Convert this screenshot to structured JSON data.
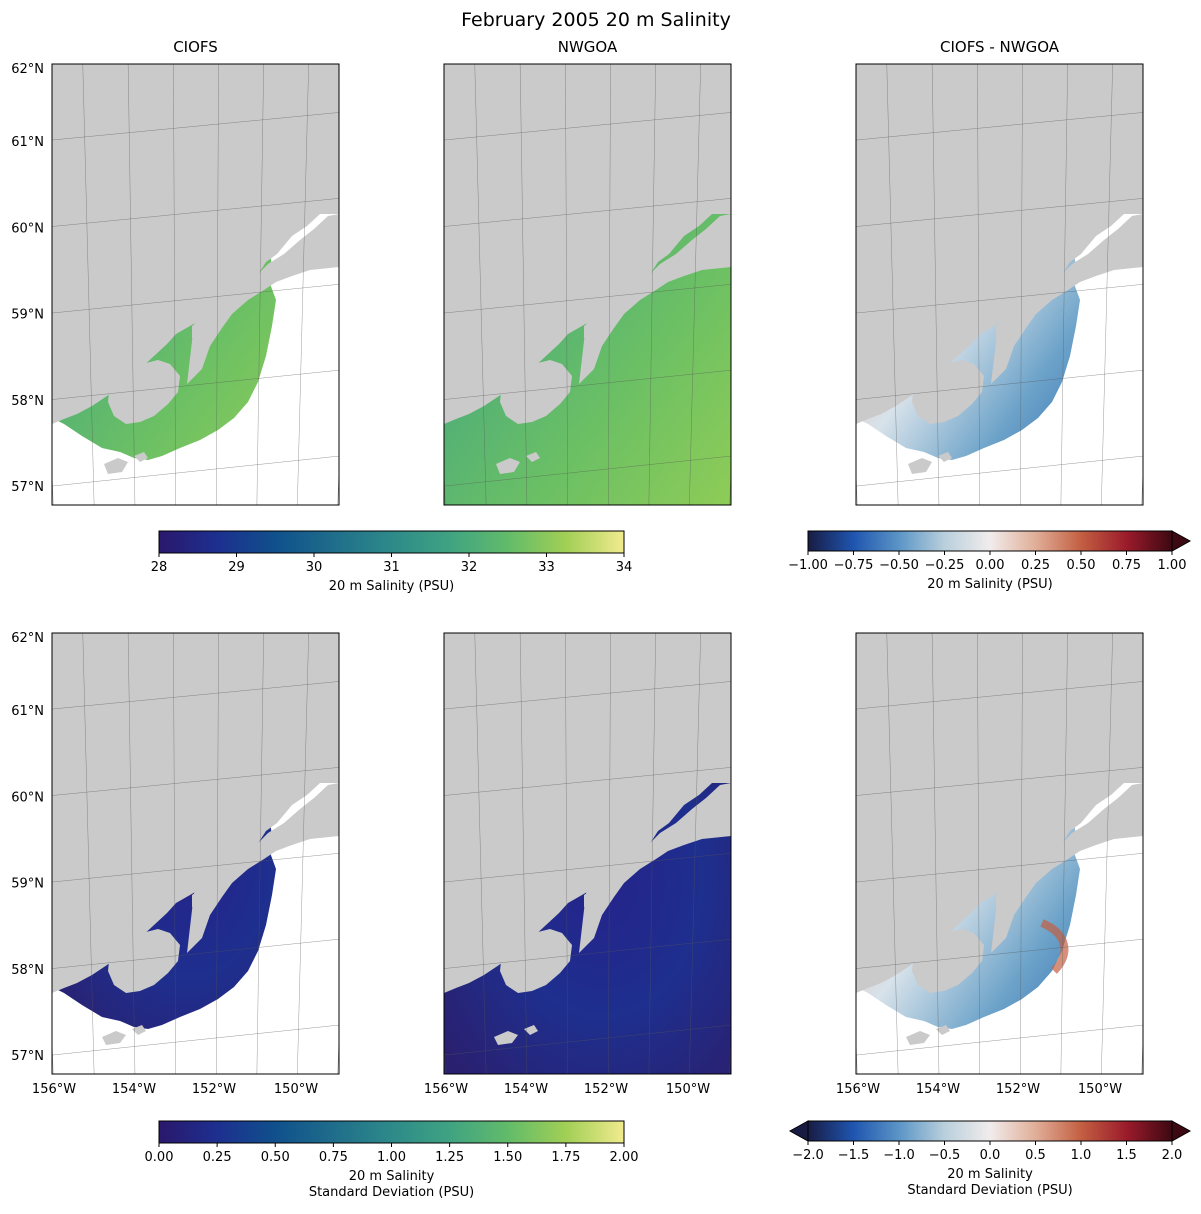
{
  "title": "February 2005 20 m Salinity",
  "chart_data": [
    {
      "type": "heatmap",
      "title": "CIOFS",
      "metric": "mean",
      "colormap": "haline",
      "vmin": 28,
      "vmax": 34,
      "field_range": [
        31.0,
        33.0
      ]
    },
    {
      "type": "heatmap",
      "title": "NWGOA",
      "metric": "mean",
      "colormap": "haline",
      "vmin": 28,
      "vmax": 34,
      "field_range": [
        31.0,
        33.0
      ]
    },
    {
      "type": "heatmap",
      "title": "CIOFS - NWGOA",
      "metric": "mean difference",
      "colormap": "balance",
      "vmin": -1.0,
      "vmax": 1.0
    },
    {
      "type": "heatmap",
      "title": "",
      "metric": "standard deviation",
      "colormap": "haline",
      "vmin": 0.0,
      "vmax": 2.0,
      "field_range": [
        0.0,
        1.8
      ]
    },
    {
      "type": "heatmap",
      "title": "",
      "metric": "standard deviation",
      "colormap": "haline",
      "vmin": 0.0,
      "vmax": 2.0,
      "field_range": [
        0.0,
        1.8
      ]
    },
    {
      "type": "heatmap",
      "title": "",
      "metric": "standard deviation difference",
      "colormap": "balance",
      "vmin": -2.0,
      "vmax": 2.0
    }
  ],
  "axes": {
    "lat_ticks": [
      "62°N",
      "61°N",
      "60°N",
      "59°N",
      "58°N",
      "57°N"
    ],
    "lon_ticks": [
      "156°W",
      "154°W",
      "152°W",
      "150°W"
    ],
    "lat_range": [
      56.2,
      62.0
    ],
    "lon_range": [
      -156.0,
      -149.0
    ]
  },
  "colorbars": [
    {
      "label": "20 m Salinity (PSU)",
      "ticks": [
        "28",
        "29",
        "30",
        "31",
        "32",
        "33",
        "34"
      ],
      "colormap": "haline",
      "extend": "neither"
    },
    {
      "label": "20 m Salinity (PSU)",
      "ticks": [
        "−1.00",
        "−0.75",
        "−0.50",
        "−0.25",
        "0.00",
        "0.25",
        "0.50",
        "0.75",
        "1.00"
      ],
      "colormap": "balance",
      "extend": "max"
    },
    {
      "label_lines": [
        "20 m Salinity",
        "Standard Deviation (PSU)"
      ],
      "ticks": [
        "0.00",
        "0.25",
        "0.50",
        "0.75",
        "1.00",
        "1.25",
        "1.50",
        "1.75",
        "2.00"
      ],
      "colormap": "haline",
      "extend": "neither"
    },
    {
      "label_lines": [
        "20 m Salinity",
        "Standard Deviation (PSU)"
      ],
      "ticks": [
        "−2.0",
        "−1.5",
        "−1.0",
        "−0.5",
        "0.0",
        "0.5",
        "1.0",
        "1.5",
        "2.0"
      ],
      "colormap": "balance",
      "extend": "both"
    }
  ],
  "colors": {
    "land": "#cacaca",
    "haline": [
      "#2a186c",
      "#1d2f8f",
      "#10508c",
      "#1f6d8b",
      "#2d8a89",
      "#3fa382",
      "#62bb6a",
      "#a1cf55",
      "#f1eb8e"
    ],
    "balance": [
      "#181c43",
      "#1f55b0",
      "#5b95c6",
      "#b9cfdc",
      "#f1ecec",
      "#e0ae98",
      "#c35f42",
      "#9b1b2b",
      "#3c0912"
    ]
  }
}
